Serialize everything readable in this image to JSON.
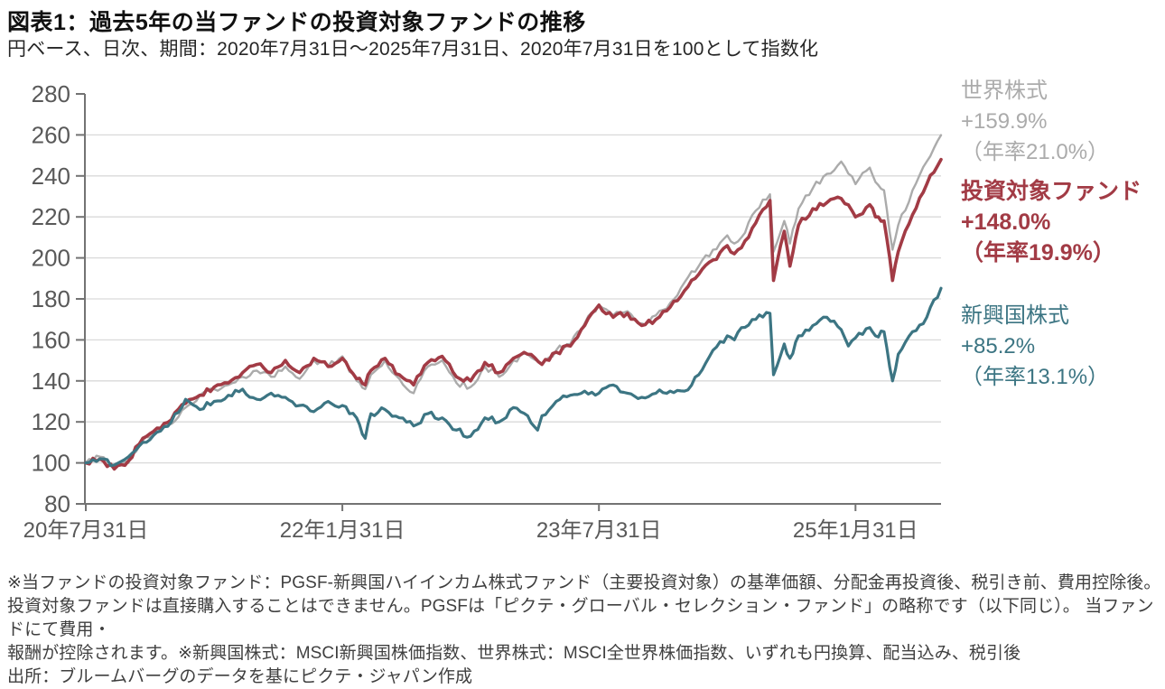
{
  "header": {
    "title": "図表1：過去5年の当ファンドの投資対象ファンドの推移",
    "subtitle": "円ベース、日次、期間：2020年7月31日～2025年7月31日、2020年7月31日を100として指数化"
  },
  "footer": {
    "lines": [
      "※当ファンドの投資対象ファンド：PGSF-新興国ハイインカム株式ファンド（主要投資対象）の基準価額、分配金再投資後、税引き前、費用控除後。",
      "投資対象ファンドは直接購入することはできません。PGSFは「ピクテ・グローバル・セレクション・ファンド」の略称です（以下同じ）。 当ファンドにて費用・",
      "報酬が控除されます。※新興国株式：MSCI新興国株価指数、世界株式：MSCI全世界株価指数、いずれも円換算、配当込み、税引後",
      "出所：ブルームバーグのデータを基にピクテ・ジャパン作成"
    ]
  },
  "chart_data": {
    "type": "line",
    "title": "図表1：過去5年の当ファンドの投資対象ファンドの推移",
    "subtitle": "円ベース、日次、期間：2020年7月31日～2025年7月31日、2020年7月31日を100として指数化",
    "index_base": 100,
    "ylim": [
      80,
      280
    ],
    "y_ticks": [
      80,
      100,
      120,
      140,
      160,
      180,
      200,
      220,
      240,
      260,
      280
    ],
    "x_ticks": [
      {
        "month": 0,
        "label": "20年7月31日"
      },
      {
        "month": 18,
        "label": "22年1月31日"
      },
      {
        "month": 36,
        "label": "23年7月31日"
      },
      {
        "month": 54,
        "label": "25年1月31日"
      }
    ],
    "grid": true,
    "legend_position": "right",
    "axis_color": "#737373",
    "grid_color": "#d9d9d9",
    "tick_label_color": "#595959",
    "series": [
      {
        "key": "world",
        "label": "世界株式",
        "total_return": "+159.9%",
        "annualized": "（年率21.0%）",
        "color": "#ABABAB",
        "points": [
          [
            0,
            100
          ],
          [
            1,
            103
          ],
          [
            2,
            99
          ],
          [
            3,
            100
          ],
          [
            4,
            111
          ],
          [
            5,
            116
          ],
          [
            6,
            119
          ],
          [
            7,
            127
          ],
          [
            8,
            133
          ],
          [
            9,
            136
          ],
          [
            10,
            138
          ],
          [
            11,
            142
          ],
          [
            12,
            145
          ],
          [
            13,
            142
          ],
          [
            14,
            147
          ],
          [
            15,
            141
          ],
          [
            16,
            150
          ],
          [
            17,
            147
          ],
          [
            18,
            152
          ],
          [
            19,
            140
          ],
          [
            19.6,
            136
          ],
          [
            20,
            143
          ],
          [
            21,
            150
          ],
          [
            22,
            141
          ],
          [
            23,
            134
          ],
          [
            24,
            147
          ],
          [
            25,
            150
          ],
          [
            26,
            139
          ],
          [
            27,
            137
          ],
          [
            28,
            147
          ],
          [
            29,
            142
          ],
          [
            30,
            150
          ],
          [
            31,
            153
          ],
          [
            32,
            148
          ],
          [
            33,
            155
          ],
          [
            34,
            158
          ],
          [
            35,
            168
          ],
          [
            36,
            177
          ],
          [
            37,
            172
          ],
          [
            38,
            174
          ],
          [
            39,
            168
          ],
          [
            40,
            172
          ],
          [
            41,
            178
          ],
          [
            42,
            188
          ],
          [
            43,
            196
          ],
          [
            44,
            204
          ],
          [
            45,
            211
          ],
          [
            45.5,
            207
          ],
          [
            46,
            210
          ],
          [
            47,
            223
          ],
          [
            48,
            231
          ],
          [
            48.25,
            203
          ],
          [
            49,
            218
          ],
          [
            49.4,
            207
          ],
          [
            50,
            224
          ],
          [
            51,
            234
          ],
          [
            52,
            241
          ],
          [
            53,
            247
          ],
          [
            54,
            236
          ],
          [
            55,
            244
          ],
          [
            55.4,
            237
          ],
          [
            56,
            233
          ],
          [
            56.6,
            204
          ],
          [
            57,
            216
          ],
          [
            58,
            233
          ],
          [
            59,
            247
          ],
          [
            60,
            259.9
          ]
        ]
      },
      {
        "key": "fund",
        "label": "投資対象ファンド",
        "total_return": "+148.0%",
        "annualized": "（年率19.9%）",
        "color": "#A23B45",
        "points": [
          [
            0,
            100
          ],
          [
            1,
            102
          ],
          [
            2,
            97
          ],
          [
            3,
            101
          ],
          [
            4,
            112
          ],
          [
            5,
            117
          ],
          [
            6,
            121
          ],
          [
            7,
            129
          ],
          [
            8,
            133
          ],
          [
            9,
            137
          ],
          [
            10,
            139
          ],
          [
            11,
            144
          ],
          [
            12,
            148
          ],
          [
            13,
            144
          ],
          [
            14,
            150
          ],
          [
            15,
            144
          ],
          [
            16,
            151
          ],
          [
            17,
            147
          ],
          [
            18,
            151
          ],
          [
            19,
            141
          ],
          [
            19.6,
            138
          ],
          [
            20,
            145
          ],
          [
            21,
            151
          ],
          [
            22,
            143
          ],
          [
            23,
            138
          ],
          [
            24,
            149
          ],
          [
            25,
            152
          ],
          [
            26,
            142
          ],
          [
            27,
            140
          ],
          [
            28,
            149
          ],
          [
            29,
            144
          ],
          [
            30,
            151
          ],
          [
            31,
            153
          ],
          [
            32,
            148
          ],
          [
            33,
            154
          ],
          [
            34,
            157
          ],
          [
            35,
            167
          ],
          [
            36,
            177
          ],
          [
            37,
            171
          ],
          [
            38,
            173
          ],
          [
            39,
            167
          ],
          [
            40,
            170
          ],
          [
            41,
            176
          ],
          [
            42,
            184
          ],
          [
            43,
            192
          ],
          [
            44,
            199
          ],
          [
            45,
            206
          ],
          [
            45.5,
            202
          ],
          [
            46,
            205
          ],
          [
            47,
            217
          ],
          [
            48,
            228
          ],
          [
            48.25,
            189
          ],
          [
            49,
            213
          ],
          [
            49.4,
            196
          ],
          [
            50,
            216
          ],
          [
            51,
            224
          ],
          [
            52,
            227
          ],
          [
            53,
            229
          ],
          [
            54,
            220
          ],
          [
            55,
            226
          ],
          [
            55.4,
            220
          ],
          [
            56,
            218
          ],
          [
            56.6,
            189
          ],
          [
            57,
            203
          ],
          [
            58,
            221
          ],
          [
            59,
            236
          ],
          [
            60,
            248
          ]
        ]
      },
      {
        "key": "em",
        "label": "新興国株式",
        "total_return": "+85.2%",
        "annualized": "（年率13.1%）",
        "color": "#3C7583",
        "points": [
          [
            0,
            100
          ],
          [
            1,
            102
          ],
          [
            2,
            99
          ],
          [
            3,
            103
          ],
          [
            4,
            110
          ],
          [
            5,
            115
          ],
          [
            6,
            120
          ],
          [
            7,
            131
          ],
          [
            8,
            126
          ],
          [
            9,
            130
          ],
          [
            10,
            133
          ],
          [
            11,
            136
          ],
          [
            12,
            131
          ],
          [
            13,
            134
          ],
          [
            14,
            132
          ],
          [
            15,
            128
          ],
          [
            16,
            125
          ],
          [
            17,
            130
          ],
          [
            18,
            128
          ],
          [
            19,
            122
          ],
          [
            19.6,
            112
          ],
          [
            20,
            124
          ],
          [
            21,
            126
          ],
          [
            22,
            122
          ],
          [
            23,
            118
          ],
          [
            24,
            124
          ],
          [
            25,
            122
          ],
          [
            26,
            116
          ],
          [
            27,
            113
          ],
          [
            28,
            122
          ],
          [
            29,
            120
          ],
          [
            30,
            127
          ],
          [
            31,
            123
          ],
          [
            31.7,
            116
          ],
          [
            32,
            123
          ],
          [
            33,
            130
          ],
          [
            34,
            133
          ],
          [
            35,
            135
          ],
          [
            36,
            134
          ],
          [
            37,
            138
          ],
          [
            38,
            134
          ],
          [
            39,
            132
          ],
          [
            40,
            134
          ],
          [
            41,
            135
          ],
          [
            42,
            135
          ],
          [
            43,
            143
          ],
          [
            44,
            155
          ],
          [
            45,
            162
          ],
          [
            45.5,
            160
          ],
          [
            46,
            166
          ],
          [
            47,
            170
          ],
          [
            48,
            173
          ],
          [
            48.25,
            143
          ],
          [
            49,
            158
          ],
          [
            49.4,
            151
          ],
          [
            50,
            162
          ],
          [
            51,
            167
          ],
          [
            52,
            171
          ],
          [
            53,
            165
          ],
          [
            53.5,
            157
          ],
          [
            54,
            161
          ],
          [
            55,
            166
          ],
          [
            55.4,
            162
          ],
          [
            56,
            164
          ],
          [
            56.6,
            140
          ],
          [
            57,
            153
          ],
          [
            58,
            164
          ],
          [
            59,
            171
          ],
          [
            60,
            185.2
          ]
        ]
      }
    ]
  }
}
